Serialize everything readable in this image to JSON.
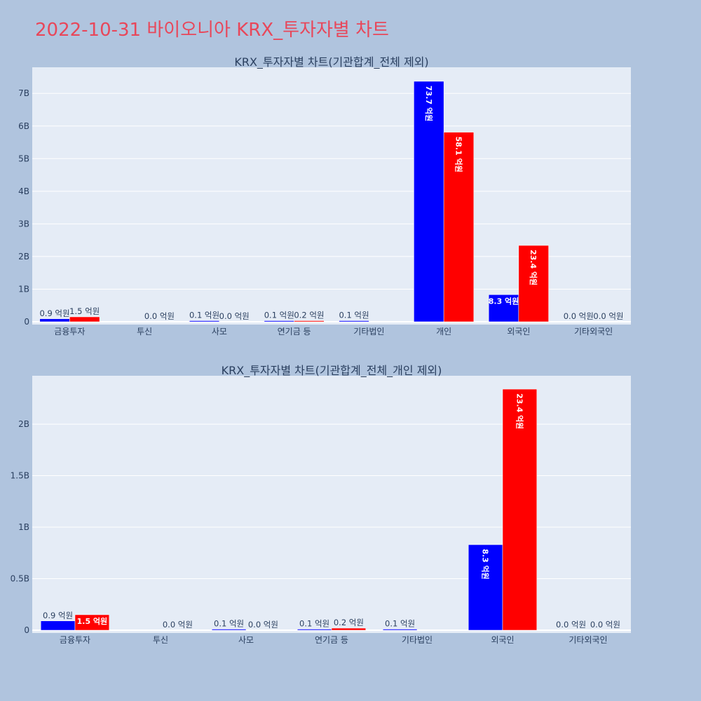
{
  "page": {
    "title": "2022-10-31 바이오니아 KRX_투자자별 차트"
  },
  "colors": {
    "buy": "#0000ff",
    "sell": "#ff0000",
    "plot_bg": "#e5ecf6",
    "paper_bg": "#b0c4de",
    "title": "#e8475a"
  },
  "chart_data": [
    {
      "type": "bar",
      "title": "KRX_투자자별 차트(기관합계_전체 제외)",
      "categories": [
        "금융투자",
        "투신",
        "사모",
        "연기금 등",
        "기타법인",
        "개인",
        "외국인",
        "기타외국인"
      ],
      "series": [
        {
          "color": "#0000ff",
          "values": [
            90000000,
            0,
            10000000,
            10000000,
            10000000,
            7370000000,
            830000000,
            0
          ],
          "labels": [
            "0.9 억원",
            "",
            "0.1 억원",
            "0.1 억원",
            "0.1 억원",
            "73.7 억원",
            "8.3 억원",
            "0.0 억원"
          ]
        },
        {
          "color": "#ff0000",
          "values": [
            150000000,
            0,
            0,
            20000000,
            0,
            5810000000,
            2340000000,
            0
          ],
          "labels": [
            "1.5 억원",
            "0.0 억원",
            "0.0 억원",
            "0.2 억원",
            "",
            "58.1 억원",
            "23.4 억원",
            "0.0 억원"
          ]
        }
      ],
      "ylim": [
        0,
        7800000000
      ],
      "yticks": [
        0,
        1000000000,
        2000000000,
        3000000000,
        4000000000,
        5000000000,
        6000000000,
        7000000000
      ],
      "yticklabels": [
        "0",
        "1B",
        "2B",
        "3B",
        "4B",
        "5B",
        "6B",
        "7B"
      ],
      "grid": true,
      "legend": "none"
    },
    {
      "type": "bar",
      "title": "KRX_투자자별 차트(기관합계_전체_개인 제외)",
      "categories": [
        "금융투자",
        "투신",
        "사모",
        "연기금 등",
        "기타법인",
        "외국인",
        "기타외국인"
      ],
      "series": [
        {
          "color": "#0000ff",
          "values": [
            90000000,
            0,
            10000000,
            10000000,
            10000000,
            830000000,
            0
          ],
          "labels": [
            "0.9 억원",
            "",
            "0.1 억원",
            "0.1 억원",
            "0.1 억원",
            "8.3 억원",
            "0.0 억원"
          ]
        },
        {
          "color": "#ff0000",
          "values": [
            150000000,
            0,
            0,
            20000000,
            0,
            2340000000,
            0
          ],
          "labels": [
            "1.5 억원",
            "0.0 억원",
            "0.0 억원",
            "0.2 억원",
            "",
            "23.4 억원",
            "0.0 억원"
          ]
        }
      ],
      "ylim": [
        0,
        2470000000
      ],
      "yticks": [
        0,
        500000000,
        1000000000,
        1500000000,
        2000000000
      ],
      "yticklabels": [
        "0",
        "0.5B",
        "1B",
        "1.5B",
        "2B"
      ],
      "grid": true,
      "legend": "none"
    }
  ]
}
